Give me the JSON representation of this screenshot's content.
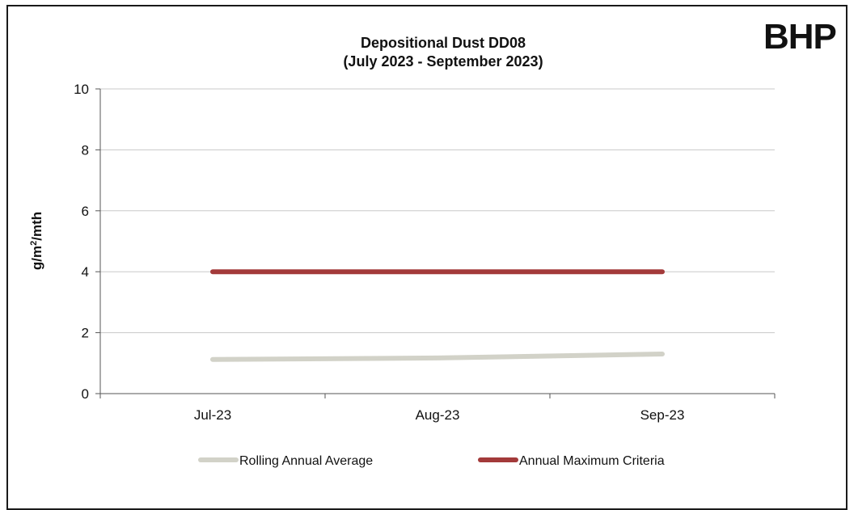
{
  "brand": {
    "name": "BHP",
    "color": "#e35205"
  },
  "chart_data": {
    "type": "line",
    "title": "Depositional Dust DD08",
    "subtitle": "(July 2023 - September 2023)",
    "xlabel": "",
    "ylabel": "g/m",
    "ylabel_superscript": "2",
    "ylabel_suffix": "/mth",
    "categories": [
      "Jul-23",
      "Aug-23",
      "Sep-23"
    ],
    "ylim": [
      0,
      10
    ],
    "yticks": [
      0,
      2,
      4,
      6,
      8,
      10
    ],
    "grid": true,
    "legend_position": "bottom",
    "series": [
      {
        "name": "Rolling Annual Average",
        "values": [
          1.12,
          1.17,
          1.3
        ],
        "color": "#d2d2c8"
      },
      {
        "name": "Annual Maximum Criteria",
        "values": [
          4,
          4,
          4
        ],
        "color": "#a33a3a"
      }
    ]
  }
}
